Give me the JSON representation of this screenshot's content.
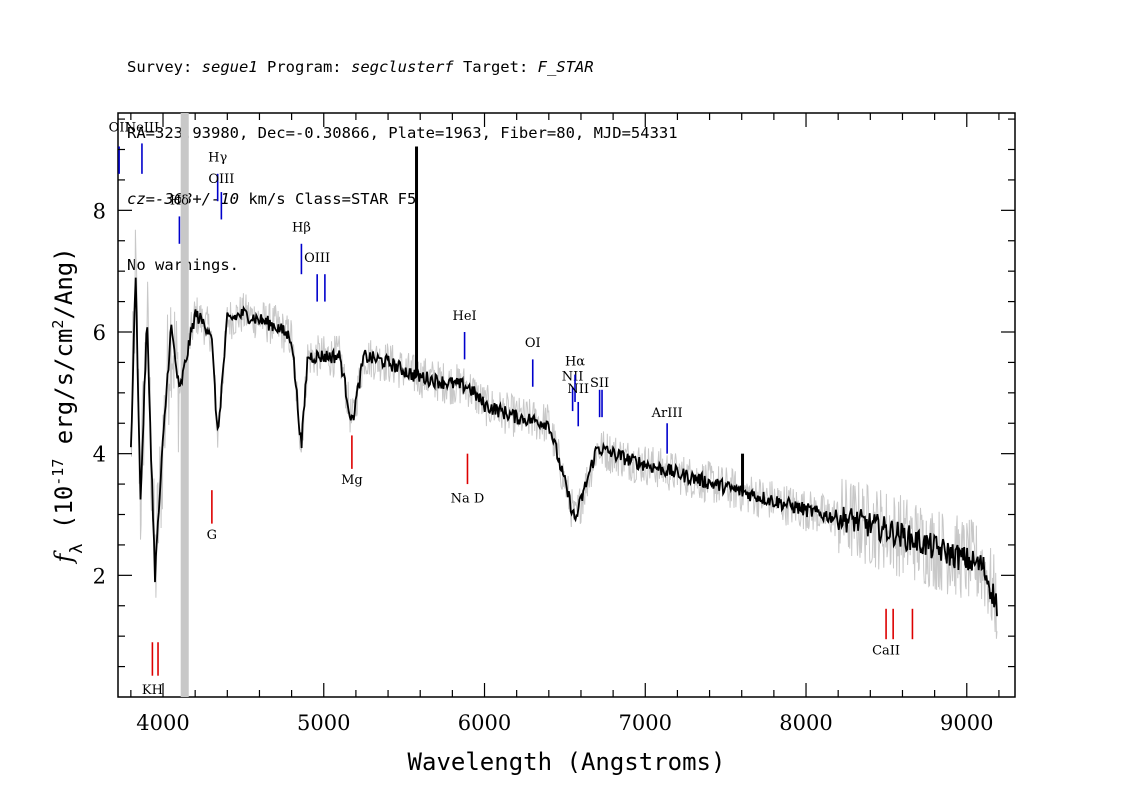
{
  "header": {
    "line1": {
      "survey_label": "Survey: ",
      "survey": "segue1",
      "program_label": " Program: ",
      "program": "segclusterf",
      "target_label": " Target: ",
      "target": "F_STAR"
    },
    "line2": "RA=323.93980, Dec=-0.30866, Plate=1963, Fiber=80, MJD=54331",
    "line3": {
      "cz": "cz=-368+/-10",
      "rest": " km/s Class=STAR F5"
    },
    "line4": "No warnings."
  },
  "chart_data": {
    "type": "line",
    "xlabel": "Wavelength (Angstroms)",
    "ylabel": "f_λ (10^-17 erg/s/cm^2/Ang)",
    "xlim": [
      3720,
      9300
    ],
    "ylim": [
      0,
      9.6
    ],
    "xticks": [
      4000,
      5000,
      6000,
      7000,
      8000,
      9000
    ],
    "yticks": [
      2,
      4,
      6,
      8
    ],
    "masked_region": [
      4110,
      4160
    ],
    "colors": {
      "flux": "#000000",
      "error": "#c8c8c8",
      "mask": "#c8c8c8",
      "emission": "#0000cc",
      "absorption": "#dd0000"
    },
    "series": [
      {
        "name": "flux",
        "x": [
          3800,
          3830,
          3860,
          3900,
          3950,
          4000,
          4050,
          4102,
          4200,
          4300,
          4340,
          4400,
          4500,
          4600,
          4700,
          4800,
          4861,
          4900,
          5000,
          5100,
          5175,
          5250,
          5400,
          5550,
          5700,
          5900,
          6000,
          6200,
          6400,
          6563,
          6700,
          6900,
          7100,
          7300,
          7500,
          7700,
          7900,
          8100,
          8300,
          8500,
          8700,
          8900,
          9100,
          9190
        ],
        "y": [
          4.0,
          7.0,
          3.2,
          6.2,
          2.0,
          4.2,
          6.1,
          5.0,
          6.3,
          6.0,
          4.3,
          6.2,
          6.3,
          6.2,
          6.1,
          5.9,
          4.1,
          5.6,
          5.6,
          5.6,
          4.5,
          5.6,
          5.5,
          5.3,
          5.2,
          5.1,
          4.8,
          4.6,
          4.5,
          2.9,
          4.1,
          3.9,
          3.75,
          3.6,
          3.45,
          3.3,
          3.15,
          3.0,
          2.9,
          2.75,
          2.55,
          2.35,
          2.15,
          1.5
        ]
      }
    ],
    "spikes": [
      {
        "x": 5577,
        "y": 9.05
      },
      {
        "x": 7605,
        "y": 4.0
      }
    ],
    "emission_lines": [
      {
        "label": "OII",
        "x": 3727,
        "y_top": 9.05,
        "y_bottom": 8.6,
        "label_y": 9.3
      },
      {
        "label": "NeIII",
        "x": 3869,
        "y_top": 9.1,
        "y_bottom": 8.6,
        "label_y": 9.3
      },
      {
        "label": "Hδ",
        "x": 4102,
        "y_top": 7.9,
        "y_bottom": 7.45,
        "label_y": 8.1
      },
      {
        "label": "Hγ",
        "x": 4340,
        "y_top": 8.6,
        "y_bottom": 8.15,
        "label_y": 8.8
      },
      {
        "label": "OIII",
        "x": 4363,
        "y_top": 8.3,
        "y_bottom": 7.85,
        "label_y": 8.45
      },
      {
        "label": "Hβ",
        "x": 4861,
        "y_top": 7.45,
        "y_bottom": 6.95,
        "label_y": 7.65
      },
      {
        "label": "OIII",
        "x": 4959,
        "y_top": 6.95,
        "y_bottom": 6.5,
        "label_y": 7.15
      },
      {
        "label": "",
        "x": 5007,
        "y_top": 6.95,
        "y_bottom": 6.5,
        "label_y": 7.15
      },
      {
        "label": "HeI",
        "x": 5876,
        "y_top": 6.0,
        "y_bottom": 5.55,
        "label_y": 6.2
      },
      {
        "label": "OI",
        "x": 6300,
        "y_top": 5.55,
        "y_bottom": 5.1,
        "label_y": 5.75
      },
      {
        "label": "NII",
        "x": 6548,
        "y_top": 5.1,
        "y_bottom": 4.7,
        "label_y": 5.2
      },
      {
        "label": "Hα",
        "x": 6563,
        "y_top": 5.3,
        "y_bottom": 4.85,
        "label_y": 5.45
      },
      {
        "label": "NII",
        "x": 6583,
        "y_top": 4.85,
        "y_bottom": 4.45,
        "label_y": 5.0
      },
      {
        "label": "SII",
        "x": 6716,
        "y_top": 5.05,
        "y_bottom": 4.6,
        "label_y": 5.1
      },
      {
        "label": "",
        "x": 6731,
        "y_top": 5.05,
        "y_bottom": 4.6,
        "label_y": 5.1
      },
      {
        "label": "ArIII",
        "x": 7136,
        "y_top": 4.5,
        "y_bottom": 4.0,
        "label_y": 4.6
      }
    ],
    "absorption_lines": [
      {
        "label": "KH",
        "x": 3934,
        "y_top": 0.9,
        "y_bottom": 0.35,
        "label_y": 0.05
      },
      {
        "label": "",
        "x": 3969,
        "y_top": 0.9,
        "y_bottom": 0.35,
        "label_y": 0.05
      },
      {
        "label": "G",
        "x": 4304,
        "y_top": 3.4,
        "y_bottom": 2.85,
        "label_y": 2.6
      },
      {
        "label": "Mg",
        "x": 5175,
        "y_top": 4.3,
        "y_bottom": 3.75,
        "label_y": 3.5
      },
      {
        "label": "Na D",
        "x": 5894,
        "y_top": 4.0,
        "y_bottom": 3.5,
        "label_y": 3.2
      },
      {
        "label": "CaII",
        "x": 8498,
        "y_top": 1.45,
        "y_bottom": 0.95,
        "label_y": 0.7
      },
      {
        "label": "",
        "x": 8542,
        "y_top": 1.45,
        "y_bottom": 0.95,
        "label_y": 0.7
      },
      {
        "label": "",
        "x": 8662,
        "y_top": 1.45,
        "y_bottom": 0.95,
        "label_y": 0.7
      }
    ]
  }
}
